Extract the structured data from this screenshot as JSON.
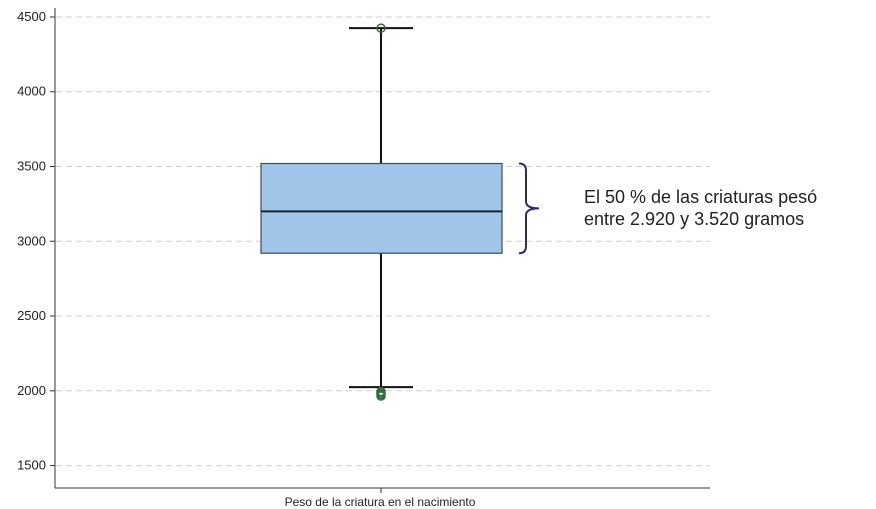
{
  "chart_data": {
    "type": "box",
    "xlabel": "Peso de la criatura en el nacimiento",
    "ylabel": "",
    "title": "",
    "ylim": [
      1350,
      4560
    ],
    "yticks": [
      1500,
      2000,
      2500,
      3000,
      3500,
      4000,
      4500
    ],
    "grid": true,
    "series": [
      {
        "q1": 2920,
        "median": 3200,
        "q3": 3520,
        "whisker_low": 2025,
        "whisker_high": 4425,
        "outliers": [
          4425,
          1995,
          1985,
          1975,
          1965
        ]
      }
    ],
    "annotation": {
      "line1": "El 50 % de las criaturas pesó",
      "line2": "entre 2.920 y 3.520 gramos"
    },
    "colors": {
      "box_fill": "#9fc6e9",
      "box_edge": "#3a4a66",
      "whisker": "#111111",
      "outlier": "#2e6b3a",
      "brace": "#2e2a6e",
      "grid": "#cfcfcf",
      "axis": "#333333"
    }
  }
}
